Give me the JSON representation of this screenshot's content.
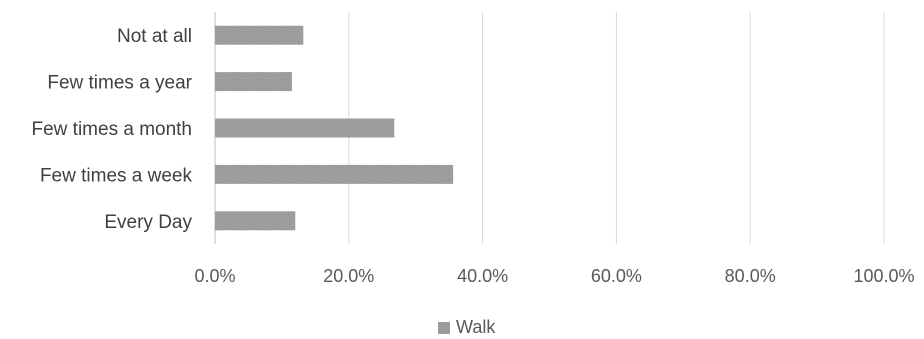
{
  "chart_data": {
    "type": "bar",
    "orientation": "horizontal",
    "categories": [
      "Not at all",
      "Few times a year",
      "Few times a month",
      "Few times a week",
      "Every Day"
    ],
    "series": [
      {
        "name": "Walk",
        "values": [
          13.2,
          11.5,
          26.8,
          35.6,
          12.0
        ],
        "color": "#a6a6a6"
      }
    ],
    "xlim": [
      0,
      100
    ],
    "x_ticks": [
      0,
      20,
      40,
      60,
      80,
      100
    ],
    "x_tick_labels": [
      "0.0%",
      "20.0%",
      "40.0%",
      "60.0%",
      "80.0%",
      "100.0%"
    ],
    "grid": true,
    "legend_position": "bottom"
  }
}
